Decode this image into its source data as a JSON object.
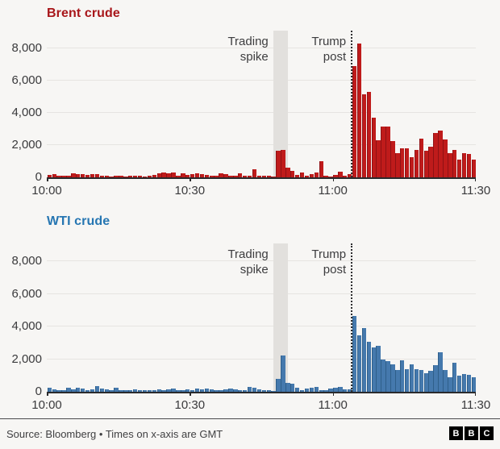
{
  "colors": {
    "page_background": "#f7f6f4",
    "gridline": "#e6e4e1",
    "axis_line": "#2b2b2d",
    "band_gray": "#e2e0dd",
    "brent_title": "#a8161a",
    "brent_bar": "#bf1b1b",
    "brent_bar_edge": "#8f1114",
    "wti_title": "#2676b2",
    "wti_bar": "#4579ad",
    "wti_bar_edge": "#2f5f8a"
  },
  "footer": {
    "source_text": "Source: Bloomberg • Times on x-axis are GMT",
    "bbc_letters": [
      "B",
      "B",
      "C"
    ]
  },
  "chart_data": [
    {
      "type": "bar",
      "title": "Brent crude",
      "title_color": "#a8161a",
      "bar_color": "#bf1b1b",
      "bar_edge_color": "#8f1114",
      "xlabel": "",
      "ylabel": "",
      "x_start_time": "10:00",
      "x_end_time": "11:30",
      "minutes_per_bar": 1,
      "x_tick_labels": [
        "10:00",
        "10:30",
        "11:00",
        "11:30"
      ],
      "x_tick_minutes": [
        0,
        30,
        60,
        90
      ],
      "y_tick_labels": [
        "0",
        "2,000",
        "4,000",
        "6,000",
        "8,000"
      ],
      "y_ticks": [
        0,
        2000,
        4000,
        6000,
        8000
      ],
      "ylim": [
        0,
        9100
      ],
      "grid": true,
      "annotations": [
        {
          "label": "Trading\nspike",
          "type": "band",
          "band_start_min": 47.5,
          "band_end_min": 50.6
        },
        {
          "label": "Trump\npost",
          "type": "dotted-line",
          "line_min": 63.8
        }
      ],
      "values": [
        150,
        200,
        80,
        120,
        100,
        250,
        180,
        200,
        150,
        180,
        200,
        100,
        80,
        60,
        80,
        100,
        60,
        80,
        120,
        80,
        60,
        100,
        150,
        250,
        300,
        250,
        280,
        80,
        250,
        150,
        220,
        250,
        200,
        150,
        100,
        80,
        250,
        200,
        80,
        100,
        250,
        80,
        120,
        500,
        100,
        100,
        80,
        60,
        1650,
        1680,
        580,
        420,
        150,
        280,
        120,
        200,
        300,
        1000,
        80,
        60,
        150,
        350,
        80,
        220,
        6900,
        8300,
        5150,
        5300,
        3700,
        2300,
        3150,
        3150,
        2250,
        1500,
        1800,
        1800,
        1250,
        1700,
        2400,
        1650,
        1900,
        2750,
        2900,
        2350,
        1500,
        1700,
        1100,
        1500,
        1450,
        1100
      ]
    },
    {
      "type": "bar",
      "title": "WTI crude",
      "title_color": "#2676b2",
      "bar_color": "#4579ad",
      "bar_edge_color": "#2f5f8a",
      "xlabel": "",
      "ylabel": "",
      "x_start_time": "10:00",
      "x_end_time": "11:30",
      "minutes_per_bar": 1,
      "x_tick_labels": [
        "10:00",
        "10:30",
        "11:00",
        "11:30"
      ],
      "x_tick_minutes": [
        0,
        30,
        60,
        90
      ],
      "y_tick_labels": [
        "0",
        "2,000",
        "4,000",
        "6,000",
        "8,000"
      ],
      "y_ticks": [
        0,
        2000,
        4000,
        6000,
        8000
      ],
      "ylim": [
        0,
        9100
      ],
      "grid": true,
      "annotations": [
        {
          "label": "Trading\nspike",
          "type": "band",
          "band_start_min": 47.5,
          "band_end_min": 50.6
        },
        {
          "label": "Trump\npost",
          "type": "dotted-line",
          "line_min": 63.8
        }
      ],
      "values": [
        250,
        150,
        100,
        120,
        250,
        150,
        250,
        180,
        120,
        150,
        350,
        200,
        150,
        100,
        250,
        120,
        80,
        100,
        150,
        80,
        100,
        120,
        80,
        150,
        100,
        150,
        200,
        120,
        100,
        150,
        120,
        180,
        150,
        200,
        150,
        120,
        100,
        150,
        200,
        150,
        100,
        120,
        300,
        250,
        150,
        100,
        80,
        60,
        780,
        2210,
        540,
        510,
        250,
        120,
        200,
        250,
        300,
        120,
        80,
        200,
        250,
        300,
        150,
        150,
        4650,
        3450,
        3900,
        3050,
        2700,
        2800,
        2000,
        1870,
        1700,
        1350,
        1950,
        1400,
        1700,
        1380,
        1320,
        1150,
        1270,
        1620,
        2400,
        1350,
        900,
        1800,
        1000,
        1100,
        1050,
        900
      ]
    }
  ]
}
